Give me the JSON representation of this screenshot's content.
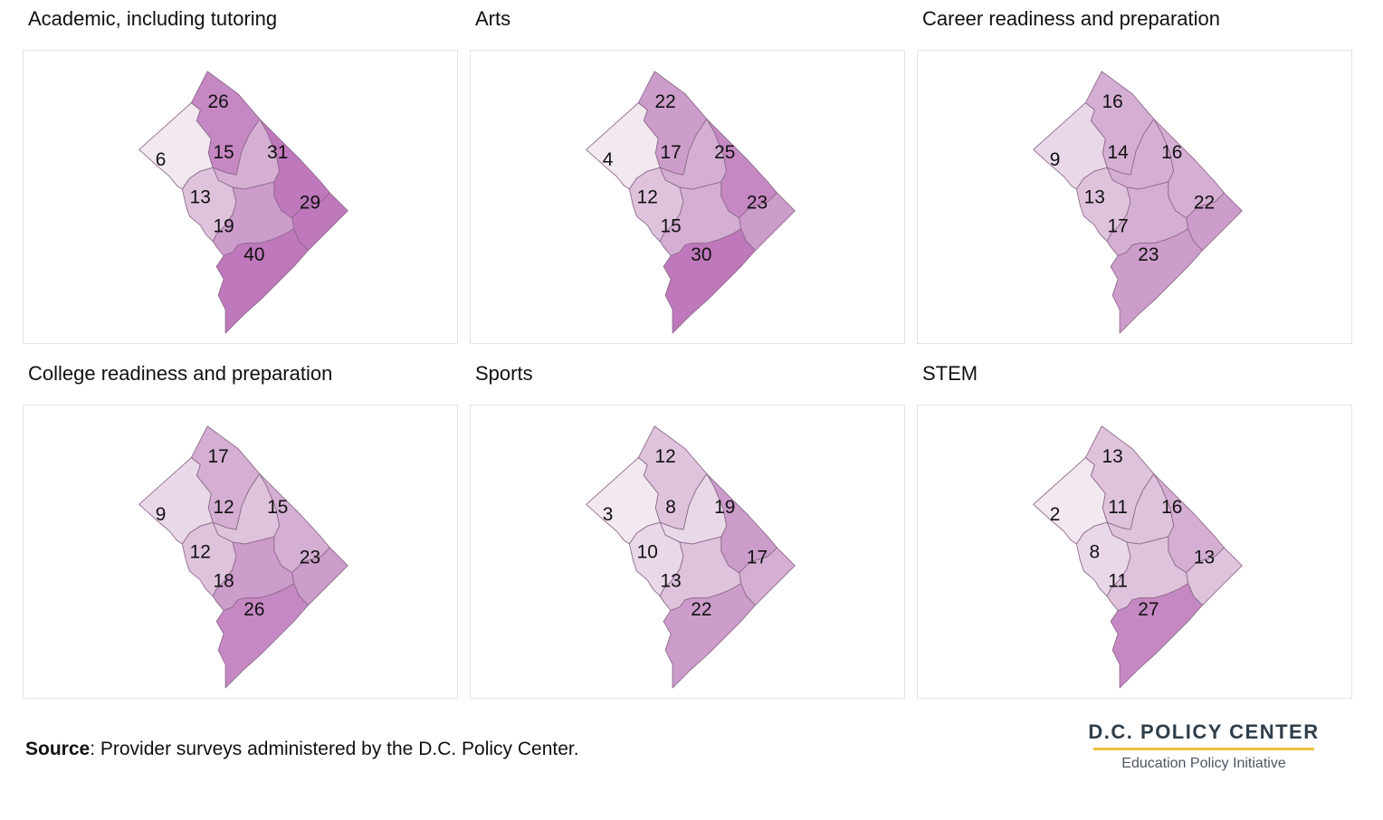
{
  "colors": {
    "ramp": [
      "#f1e8f0",
      "#e9d9e8",
      "#dfc3dd",
      "#d5aed3",
      "#cc9ccb",
      "#c688c3",
      "#bf78bc"
    ],
    "border": "#8f6b8c",
    "logo_rule": "#f0c23b"
  },
  "panels": [
    {
      "title": "Academic, including tutoring",
      "wards": [
        26,
        6,
        15,
        31,
        13,
        29,
        19,
        40
      ]
    },
    {
      "title": "Arts",
      "wards": [
        22,
        4,
        17,
        25,
        12,
        23,
        15,
        30
      ]
    },
    {
      "title": "Career readiness and preparation",
      "wards": [
        16,
        9,
        14,
        16,
        13,
        22,
        17,
        23
      ]
    },
    {
      "title": "College readiness and preparation",
      "wards": [
        17,
        9,
        12,
        15,
        12,
        23,
        18,
        26
      ]
    },
    {
      "title": "Sports",
      "wards": [
        12,
        3,
        8,
        19,
        10,
        17,
        13,
        22
      ]
    },
    {
      "title": "STEM",
      "wards": [
        13,
        2,
        11,
        16,
        8,
        13,
        11,
        27
      ]
    }
  ],
  "source": {
    "label": "Source",
    "text": ": Provider surveys administered by the D.C. Policy Center."
  },
  "logo": {
    "name": "D.C. POLICY CENTER",
    "subtitle": "Education Policy Initiative"
  }
}
